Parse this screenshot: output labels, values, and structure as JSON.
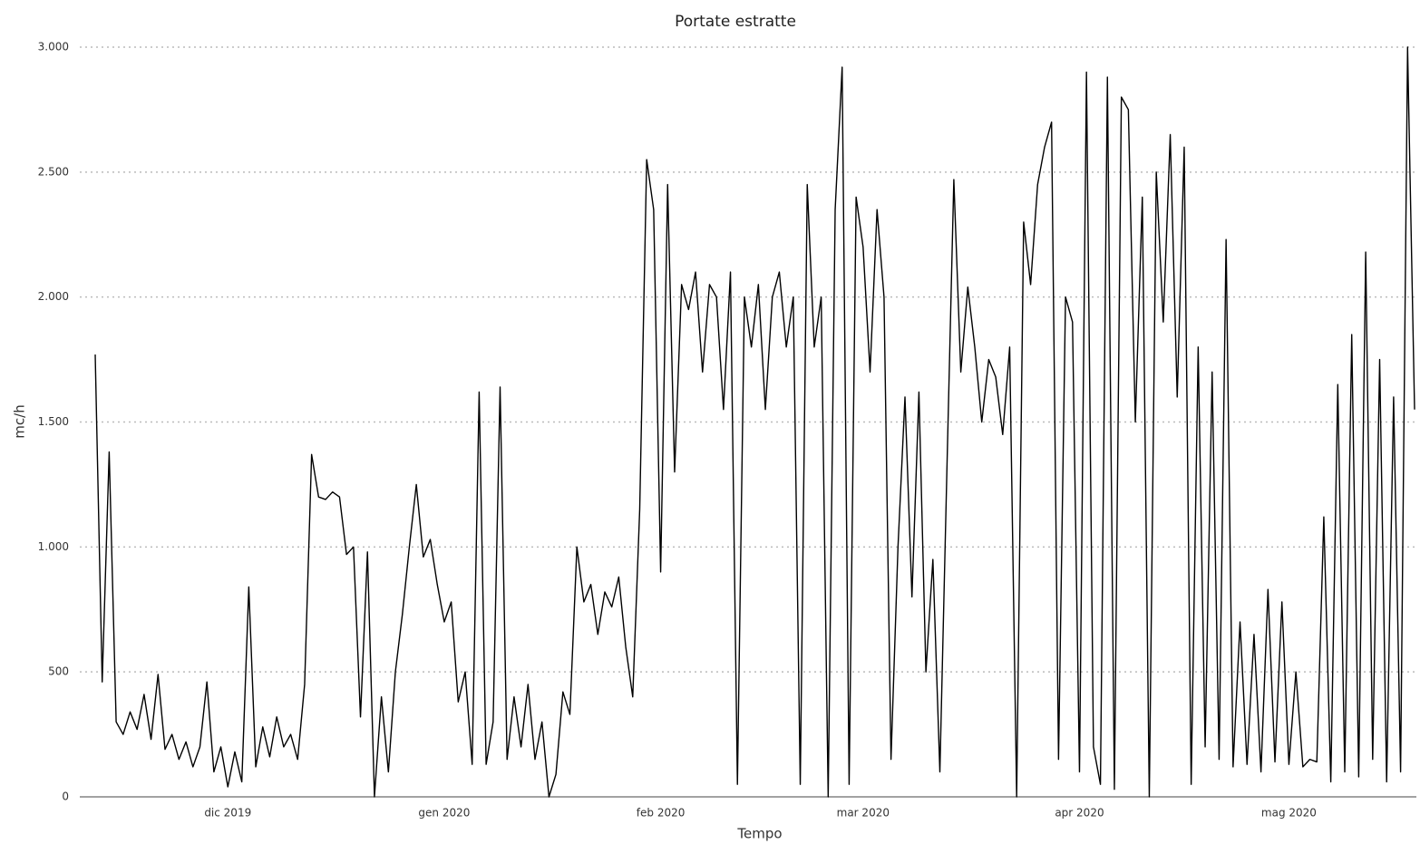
{
  "chart_data": {
    "type": "line",
    "title": "Portate estratte",
    "x_label": "Tempo",
    "y_label": "mc/h",
    "categories": [
      null,
      null,
      null,
      null,
      null,
      null,
      null,
      null,
      null,
      null,
      null,
      null,
      null,
      null,
      null,
      null,
      null,
      null,
      null,
      "dic 2019",
      null,
      null,
      null,
      null,
      null,
      null,
      null,
      null,
      null,
      null,
      null,
      null,
      null,
      null,
      null,
      null,
      null,
      null,
      null,
      null,
      null,
      null,
      null,
      null,
      null,
      null,
      null,
      null,
      null,
      null,
      "gen 2020",
      null,
      null,
      null,
      null,
      null,
      null,
      null,
      null,
      null,
      null,
      null,
      null,
      null,
      null,
      null,
      null,
      null,
      null,
      null,
      null,
      null,
      null,
      null,
      null,
      null,
      null,
      null,
      null,
      null,
      null,
      "feb 2020",
      null,
      null,
      null,
      null,
      null,
      null,
      null,
      null,
      null,
      null,
      null,
      null,
      null,
      null,
      null,
      null,
      null,
      null,
      null,
      null,
      null,
      null,
      null,
      null,
      null,
      null,
      null,
      null,
      "mar 2020",
      null,
      null,
      null,
      null,
      null,
      null,
      null,
      null,
      null,
      null,
      null,
      null,
      null,
      null,
      null,
      null,
      null,
      null,
      null,
      null,
      null,
      null,
      null,
      null,
      null,
      null,
      null,
      null,
      null,
      null,
      "apr 2020",
      null,
      null,
      null,
      null,
      null,
      null,
      null,
      null,
      null,
      null,
      null,
      null,
      null,
      null,
      null,
      null,
      null,
      null,
      null,
      null,
      null,
      null,
      null,
      null,
      null,
      null,
      null,
      null,
      null,
      "mag 2020",
      null,
      null,
      null,
      null,
      null,
      null,
      null,
      null,
      null,
      null,
      null,
      null,
      null,
      null,
      null,
      null,
      null,
      null
    ],
    "values": [
      1770,
      460,
      1380,
      300,
      250,
      340,
      270,
      410,
      230,
      490,
      190,
      250,
      150,
      220,
      120,
      200,
      460,
      100,
      200,
      40,
      180,
      60,
      840,
      120,
      280,
      160,
      320,
      200,
      250,
      150,
      450,
      1370,
      1200,
      1190,
      1220,
      1200,
      970,
      1000,
      320,
      980,
      0,
      400,
      100,
      500,
      730,
      1000,
      1250,
      960,
      1030,
      850,
      700,
      780,
      380,
      500,
      130,
      1620,
      130,
      300,
      1640,
      150,
      400,
      200,
      450,
      150,
      300,
      0,
      90,
      420,
      330,
      1000,
      780,
      850,
      650,
      820,
      760,
      880,
      600,
      400,
      1150,
      2550,
      2350,
      900,
      2450,
      1300,
      2050,
      1950,
      2100,
      1700,
      2050,
      2000,
      1550,
      2100,
      50,
      2000,
      1800,
      2050,
      1550,
      2000,
      2100,
      1800,
      2000,
      50,
      2450,
      1800,
      2000,
      0,
      2350,
      2920,
      50,
      2400,
      2200,
      1700,
      2350,
      2000,
      150,
      1000,
      1600,
      800,
      1620,
      500,
      950,
      100,
      1300,
      2470,
      1700,
      2040,
      1800,
      1500,
      1750,
      1680,
      1450,
      1800,
      0,
      2300,
      2050,
      2450,
      2600,
      2700,
      150,
      2000,
      1900,
      100,
      2900,
      200,
      50,
      2880,
      30,
      2800,
      2750,
      1500,
      2400,
      0,
      2500,
      1900,
      2650,
      1600,
      2600,
      50,
      1800,
      200,
      1700,
      150,
      2230,
      120,
      700,
      130,
      650,
      100,
      830,
      140,
      780,
      130,
      500,
      120,
      150,
      140,
      1120,
      60,
      1650,
      100,
      1850,
      80,
      2180,
      150,
      1750,
      60,
      1600,
      100,
      3000,
      1550
    ],
    "color": "#000000",
    "ylim": [
      0,
      3000
    ],
    "yticks": [
      0,
      500,
      {
        "value": 1000,
        "label": "1.000"
      },
      {
        "value": 1500,
        "label": "1.500"
      },
      {
        "value": 2000,
        "label": "2.000"
      },
      {
        "value": 2500,
        "label": "2.500"
      },
      {
        "value": 3000,
        "label": "3.000"
      }
    ],
    "grid": true
  }
}
